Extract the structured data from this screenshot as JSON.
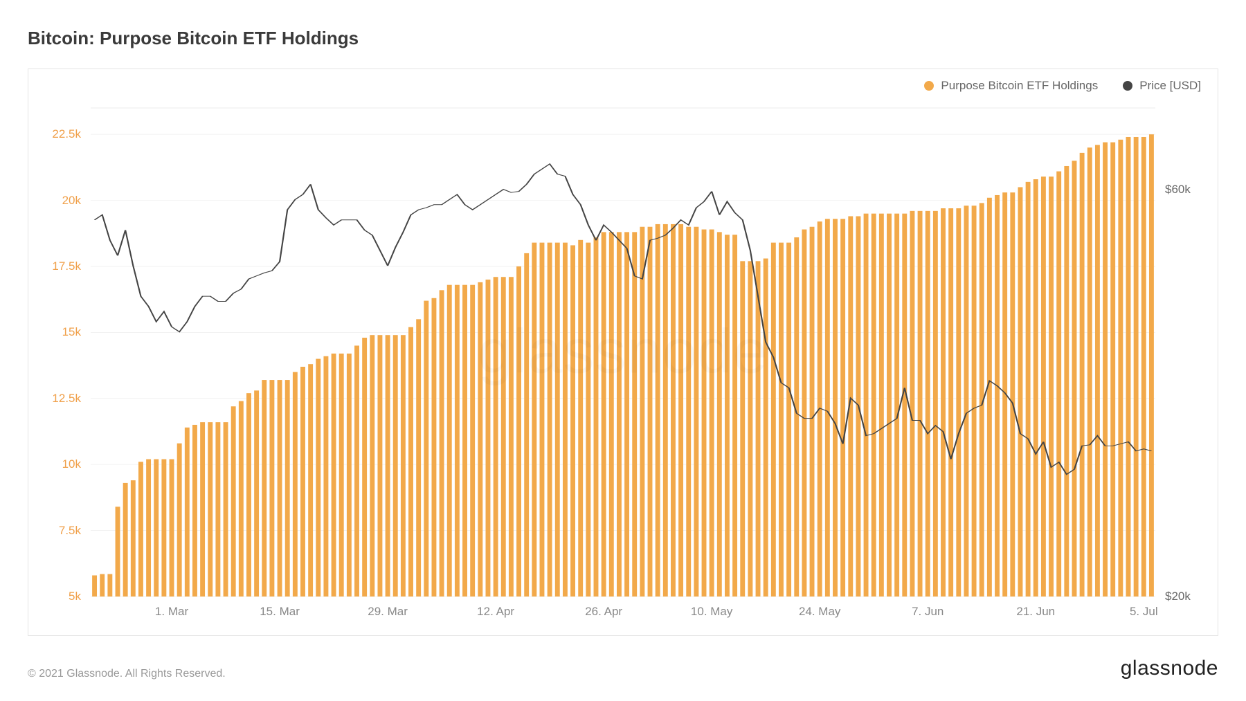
{
  "title": "Bitcoin: Purpose Bitcoin ETF Holdings",
  "legend": {
    "series1": "Purpose Bitcoin ETF Holdings",
    "series2": "Price [USD]"
  },
  "copyright": "© 2021 Glassnode. All Rights Reserved.",
  "brand": "glassnode",
  "watermark": "glassnode",
  "chart": {
    "type": "bar+line",
    "bar_color": "#f2a94a",
    "line_color": "#444444",
    "grid_color": "#eeeeee",
    "background_color": "#ffffff",
    "left_axis": {
      "label_color": "#f0a04a",
      "min": 5000,
      "max": 23500,
      "ticks": [
        {
          "v": 5000,
          "label": "5k"
        },
        {
          "v": 7500,
          "label": "7.5k"
        },
        {
          "v": 10000,
          "label": "10k"
        },
        {
          "v": 12500,
          "label": "12.5k"
        },
        {
          "v": 15000,
          "label": "15k"
        },
        {
          "v": 17500,
          "label": "17.5k"
        },
        {
          "v": 20000,
          "label": "20k"
        },
        {
          "v": 22500,
          "label": "22.5k"
        }
      ]
    },
    "right_axis": {
      "label_color": "#666666",
      "min": 20000,
      "max": 68000,
      "ticks": [
        {
          "v": 20000,
          "label": "$20k"
        },
        {
          "v": 60000,
          "label": "$60k"
        }
      ]
    },
    "x_ticks": [
      {
        "i": 10,
        "label": "1. Mar"
      },
      {
        "i": 24,
        "label": "15. Mar"
      },
      {
        "i": 38,
        "label": "29. Mar"
      },
      {
        "i": 52,
        "label": "12. Apr"
      },
      {
        "i": 66,
        "label": "26. Apr"
      },
      {
        "i": 80,
        "label": "10. May"
      },
      {
        "i": 94,
        "label": "24. May"
      },
      {
        "i": 108,
        "label": "7. Jun"
      },
      {
        "i": 122,
        "label": "21. Jun"
      },
      {
        "i": 136,
        "label": "5. Jul"
      }
    ],
    "bars": [
      5800,
      5850,
      5850,
      8400,
      9300,
      9400,
      10100,
      10200,
      10200,
      10200,
      10200,
      10800,
      11400,
      11500,
      11600,
      11600,
      11600,
      11600,
      12200,
      12400,
      12700,
      12800,
      13200,
      13200,
      13200,
      13200,
      13500,
      13700,
      13800,
      14000,
      14100,
      14200,
      14200,
      14200,
      14500,
      14800,
      14900,
      14900,
      14900,
      14900,
      14900,
      15200,
      15500,
      16200,
      16300,
      16600,
      16800,
      16800,
      16800,
      16800,
      16900,
      17000,
      17100,
      17100,
      17100,
      17500,
      18000,
      18400,
      18400,
      18400,
      18400,
      18400,
      18300,
      18500,
      18400,
      18600,
      18800,
      18800,
      18800,
      18800,
      18800,
      19000,
      19000,
      19100,
      19100,
      19100,
      19100,
      19000,
      19000,
      18900,
      18900,
      18800,
      18700,
      18700,
      17700,
      17700,
      17700,
      17800,
      18400,
      18400,
      18400,
      18600,
      18900,
      19000,
      19200,
      19300,
      19300,
      19300,
      19400,
      19400,
      19500,
      19500,
      19500,
      19500,
      19500,
      19500,
      19600,
      19600,
      19600,
      19600,
      19700,
      19700,
      19700,
      19800,
      19800,
      19900,
      20100,
      20200,
      20300,
      20300,
      20500,
      20700,
      20800,
      20900,
      20900,
      21100,
      21300,
      21500,
      21800,
      22000,
      22100,
      22200,
      22200,
      22300,
      22400,
      22400,
      22400,
      22500
    ],
    "price": [
      57000,
      57500,
      55000,
      53500,
      56000,
      52500,
      49500,
      48500,
      47000,
      48000,
      46500,
      46000,
      47000,
      48500,
      49500,
      49500,
      49000,
      49000,
      49800,
      50200,
      51200,
      51500,
      51800,
      52000,
      52900,
      58000,
      59000,
      59500,
      60500,
      58000,
      57200,
      56500,
      57000,
      57000,
      57000,
      56000,
      55500,
      54000,
      52500,
      54300,
      55800,
      57500,
      58000,
      58200,
      58500,
      58500,
      59000,
      59500,
      58500,
      58000,
      58500,
      59000,
      59500,
      60000,
      59700,
      59800,
      60500,
      61500,
      62000,
      62500,
      61500,
      61300,
      59500,
      58500,
      56500,
      55000,
      56500,
      55800,
      55000,
      54200,
      51500,
      51200,
      55000,
      55200,
      55500,
      56200,
      57000,
      56500,
      58200,
      58800,
      59800,
      57500,
      58800,
      57700,
      57000,
      54000,
      49500,
      45000,
      43500,
      41000,
      40500,
      38000,
      37500,
      37500,
      38500,
      38200,
      37000,
      35000,
      39500,
      38800,
      35800,
      36000,
      36500,
      37000,
      37500,
      40500,
      37300,
      37300,
      36000,
      36800,
      36200,
      33500,
      36000,
      38000,
      38500,
      38800,
      41200,
      40700,
      40000,
      39000,
      36000,
      35500,
      34000,
      35200,
      32700,
      33200,
      32000,
      32500,
      34800,
      34900,
      35800,
      34800,
      34800,
      35000,
      35200,
      34300,
      34500,
      34300
    ]
  }
}
